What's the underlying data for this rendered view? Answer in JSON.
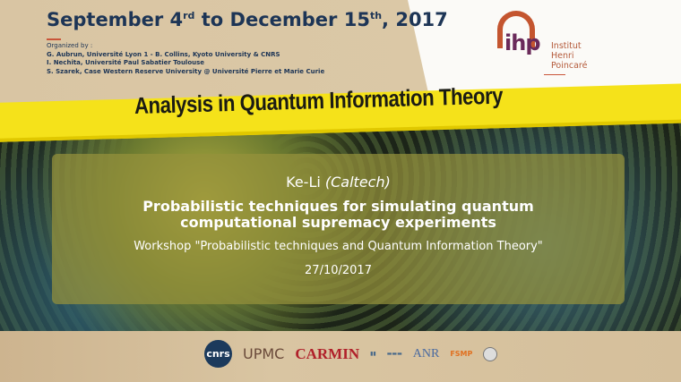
{
  "header": {
    "date_start": "September 4",
    "date_start_sup": "rd",
    "date_mid": " to December 15",
    "date_end_sup": "th",
    "date_year": ", 2017",
    "organized_label": "Organized by :",
    "organizers": [
      "G. Aubrun, Université Lyon 1 - B. Collins, Kyoto University & CNRS",
      "I. Nechita, Université Paul Sabatier Toulouse",
      "S. Szarek, Case Western Reserve University @ Université Pierre et Marie Curie"
    ]
  },
  "logo": {
    "mark": "ihp",
    "name_lines": [
      "Institut",
      "Henri",
      "Poincaré"
    ]
  },
  "banner": {
    "title": "Analysis in Quantum Information Theory",
    "color": "#f5e21a"
  },
  "talk": {
    "speaker": "Ke-Li",
    "affiliation": "(Caltech)",
    "title_lines": [
      "Probabilistic techniques for simulating quantum",
      "computational supremacy experiments"
    ],
    "workshop": "Workshop \"Probabilistic techniques and Quantum Information Theory\"",
    "date": "27/10/2017"
  },
  "sponsors": {
    "cnrs": "cnrs",
    "upmc": "UPMC",
    "carmin": "CARMIN",
    "anr": "ANR",
    "fsmp": "FSMP"
  }
}
